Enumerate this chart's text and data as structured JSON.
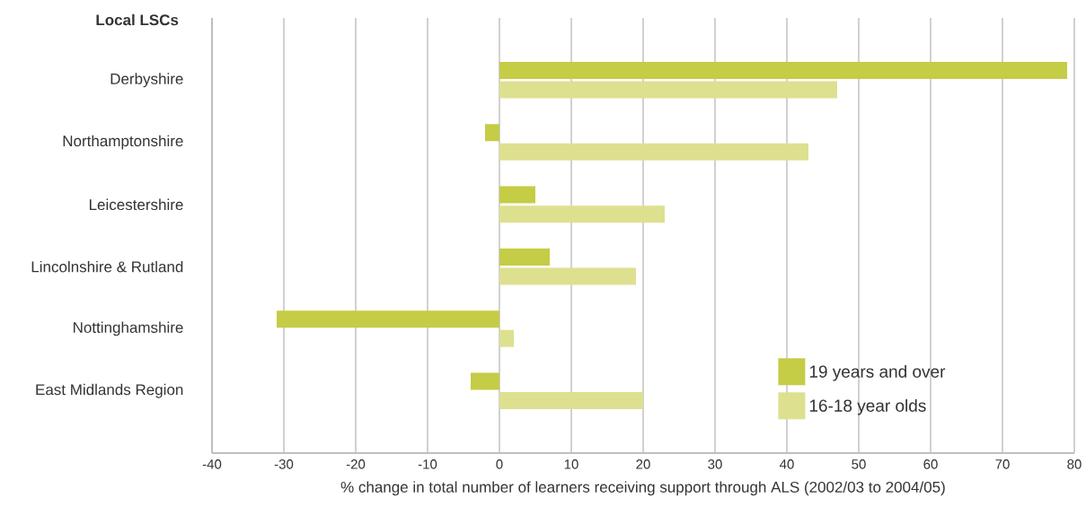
{
  "chart_data": {
    "type": "bar",
    "orientation": "horizontal",
    "ylabel": "Local LSCs",
    "xlabel": "% change in total number of learners receiving support through ALS (2002/03 to 2004/05)",
    "categories": [
      "Derbyshire",
      "Northamptonshire",
      "Leicestershire",
      "Lincolnshire & Rutland",
      "Nottinghamshire",
      "East Midlands Region"
    ],
    "series": [
      {
        "name": "19 years and over",
        "color": "#c5cc45",
        "values": [
          79,
          -2,
          5,
          7,
          -31,
          -4
        ]
      },
      {
        "name": "16-18 year olds",
        "color": "#dde08f",
        "values": [
          47,
          43,
          23,
          19,
          2,
          20
        ]
      }
    ],
    "xlim": [
      -40,
      80
    ],
    "xticks": [
      -40,
      -30,
      -20,
      -10,
      0,
      10,
      20,
      30,
      40,
      50,
      60,
      70,
      80
    ],
    "grid": "x",
    "legend": "bottom right"
  }
}
